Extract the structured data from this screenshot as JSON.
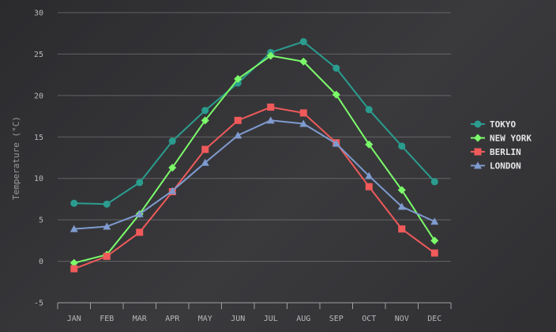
{
  "chart_data": {
    "type": "line",
    "title": "",
    "xlabel": "",
    "ylabel": "Temperature (°C)",
    "categories": [
      "Jan",
      "Feb",
      "Mar",
      "Apr",
      "May",
      "Jun",
      "Jul",
      "Aug",
      "Sep",
      "Oct",
      "Nov",
      "Dec"
    ],
    "ylim": [
      -5,
      30
    ],
    "yticks": [
      -5,
      0,
      5,
      10,
      15,
      20,
      25,
      30
    ],
    "grid": true,
    "legend_position": "right",
    "series": [
      {
        "name": "Tokyo",
        "color": "#2a9d8f",
        "marker": "circle",
        "values": [
          7.0,
          6.9,
          9.5,
          14.5,
          18.2,
          21.5,
          25.2,
          26.5,
          23.3,
          18.3,
          13.9,
          9.6
        ]
      },
      {
        "name": "New York",
        "color": "#7cfc6a",
        "marker": "diamond",
        "values": [
          -0.2,
          0.8,
          5.7,
          11.3,
          17.0,
          22.0,
          24.8,
          24.1,
          20.1,
          14.1,
          8.6,
          2.5
        ]
      },
      {
        "name": "Berlin",
        "color": "#f05a5a",
        "marker": "square",
        "values": [
          -0.9,
          0.6,
          3.5,
          8.4,
          13.5,
          17.0,
          18.6,
          17.9,
          14.3,
          9.0,
          3.9,
          1.0
        ]
      },
      {
        "name": "London",
        "color": "#7f9bcf",
        "marker": "triangle",
        "values": [
          3.9,
          4.2,
          5.7,
          8.5,
          11.9,
          15.2,
          17.0,
          16.6,
          14.2,
          10.3,
          6.6,
          4.8
        ]
      }
    ]
  }
}
